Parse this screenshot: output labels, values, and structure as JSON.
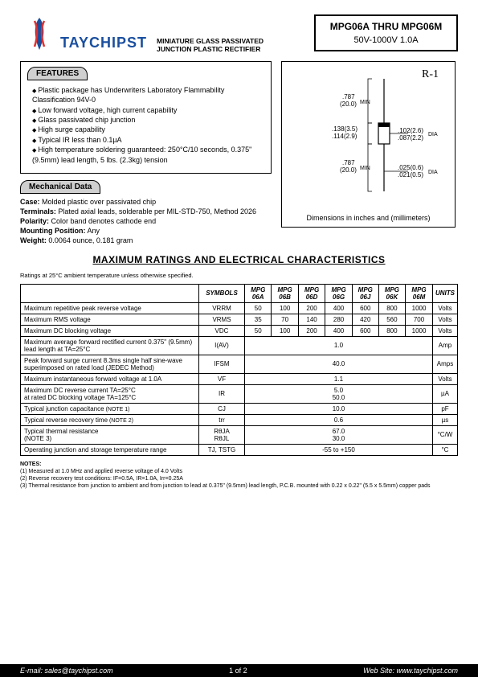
{
  "header": {
    "brand": "TAYCHIPST",
    "subtitle": "MINIATURE GLASS PASSIVATED JUNCTION PLASTIC RECTIFIER",
    "part_range": "MPG06A  THRU  MPG06M",
    "rating": "50V-1000V    1.0A",
    "logo_colors": {
      "blue": "#1a4fa0",
      "red": "#e03030"
    }
  },
  "features": {
    "title": "FEATURES",
    "items": [
      "Plastic package has Underwriters Laboratory Flammability Classification 94V-0",
      "Low forward voltage, high current capability",
      "Glass passivated chip junction",
      "High surge capability",
      "Typical IR less than 0.1µA",
      "High temperature soldering guaranteed: 250°C/10 seconds, 0.375\" (9.5mm) lead length, 5 lbs. (2.3kg) tension"
    ]
  },
  "diagram": {
    "title": "R-1",
    "caption": "Dimensions in inches and (millimeters)",
    "labels": {
      "lead_top": ".787\n(20.0)",
      "body_len": ".138(3.5)\n.114(2.9)",
      "body_dia": ".102(2.6)\n.087(2.2)",
      "lead_bot": ".787\n(20.0)",
      "lead_dia": ".025(0.6)\n.021(0.5)",
      "min": "MIN",
      "dia": "DIA"
    }
  },
  "mechanical": {
    "title": "Mechanical Data",
    "case_label": "Case:",
    "case": "Molded plastic over passivated chip",
    "terminals_label": "Terminals:",
    "terminals": "Plated axial leads, solderable per MIL-STD-750, Method 2026",
    "polarity_label": "Polarity:",
    "polarity": "Color band denotes cathode end",
    "mounting_label": "Mounting Position:",
    "mounting": "Any",
    "weight_label": "Weight:",
    "weight": "0.0064 ounce, 0.181 gram"
  },
  "ratings_section": {
    "title": "MAXIMUM RATINGS AND ELECTRICAL CHARACTERISTICS",
    "condition": "Ratings at 25°C ambient temperature unless otherwise specified.",
    "columns": [
      "SYMBOLS",
      "MPG 06A",
      "MPG 06B",
      "MPG 06D",
      "MPG 06G",
      "MPG 06J",
      "MPG 06K",
      "MPG 06M",
      "UNITS"
    ],
    "rows": [
      {
        "param": "Maximum repetitive peak reverse voltage",
        "symbol": "VRRM",
        "vals": [
          "50",
          "100",
          "200",
          "400",
          "600",
          "800",
          "1000"
        ],
        "units": "Volts",
        "span": false
      },
      {
        "param": "Maximum RMS voltage",
        "symbol": "VRMS",
        "vals": [
          "35",
          "70",
          "140",
          "280",
          "420",
          "560",
          "700"
        ],
        "units": "Volts",
        "span": false
      },
      {
        "param": "Maximum DC blocking voltage",
        "symbol": "VDC",
        "vals": [
          "50",
          "100",
          "200",
          "400",
          "600",
          "800",
          "1000"
        ],
        "units": "Volts",
        "span": false
      },
      {
        "param": "Maximum average forward rectified current 0.375\" (9.5mm) lead length at TA=25°C",
        "symbol": "I(AV)",
        "vals": [
          "1.0"
        ],
        "units": "Amp",
        "span": true
      },
      {
        "param": "Peak forward surge current 8.3ms single half sine-wave superimposed on rated load (JEDEC Method)",
        "symbol": "IFSM",
        "vals": [
          "40.0"
        ],
        "units": "Amps",
        "span": true
      },
      {
        "param": "Maximum instantaneous forward voltage at 1.0A",
        "symbol": "VF",
        "vals": [
          "1.1"
        ],
        "units": "Volts",
        "span": true
      },
      {
        "param": "Maximum DC reverse current            TA=25°C\nat rated DC blocking voltage               TA=125°C",
        "symbol": "IR",
        "vals": [
          "5.0\n50.0"
        ],
        "units": "µA",
        "span": true
      },
      {
        "param": "Typical junction capacitance",
        "note": "(NOTE 1)",
        "symbol": "CJ",
        "vals": [
          "10.0"
        ],
        "units": "pF",
        "span": true
      },
      {
        "param": "Typical reverse recovery time",
        "note": "(NOTE 2)",
        "symbol": "trr",
        "vals": [
          "0.6"
        ],
        "units": "µs",
        "span": true
      },
      {
        "param": "Typical thermal resistance\n(NOTE 3)",
        "symbol": "RθJA\nRθJL",
        "vals": [
          "67.0\n30.0"
        ],
        "units": "°C/W",
        "span": true
      },
      {
        "param": "Operating junction and storage temperature range",
        "symbol": "TJ, TSTG",
        "vals": [
          "-55 to +150"
        ],
        "units": "°C",
        "span": true
      }
    ]
  },
  "notes": {
    "title": "NOTES:",
    "items": [
      "(1) Measured at 1.0 MHz and applied reverse voltage of 4.0 Volts",
      "(2) Reverse recovery test conditions: IF=0.5A, IR=1.0A, Irr=0.25A",
      "(3) Thermal resistance from junction to ambient and from junction to lead at 0.375\" (9.5mm) lead length, P.C.B. mounted with 0.22 x 0.22\" (5.5 x 5.5mm) copper pads"
    ]
  },
  "footer": {
    "email": "E-mail: sales@taychipst.com",
    "page": "1 of  2",
    "website": "Web Site: www.taychipst.com"
  }
}
